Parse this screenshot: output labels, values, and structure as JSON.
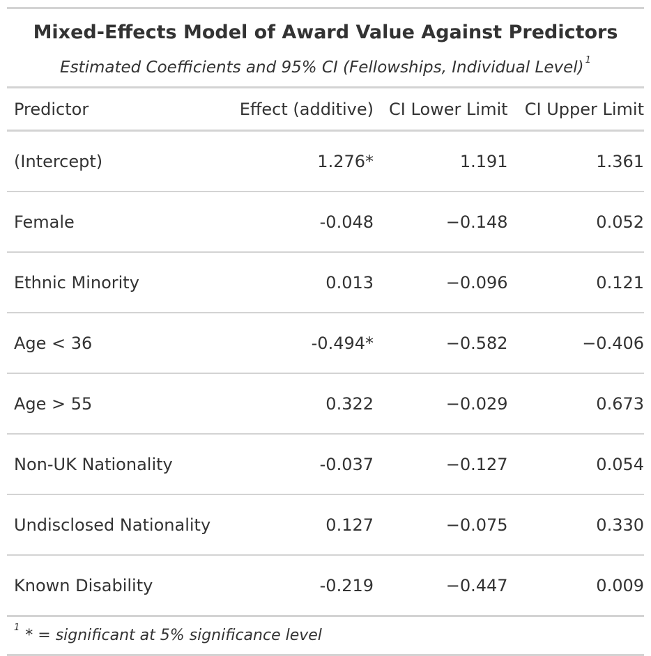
{
  "table": {
    "title": "Mixed-Effects Model of Award Value Against Predictors",
    "subtitle": "Estimated Coefficients and 95% CI (Fellowships, Individual Level)",
    "subtitle_footnote_mark": "1",
    "columns": {
      "predictor": "Predictor",
      "effect": "Effect (additive)",
      "ci_lower": "CI Lower Limit",
      "ci_upper": "CI Upper Limit"
    },
    "rows": [
      {
        "predictor": "(Intercept)",
        "effect": "1.276*",
        "ci_lower": "1.191",
        "ci_upper": "1.361"
      },
      {
        "predictor": "Female",
        "effect": "-0.048",
        "ci_lower": "−0.148",
        "ci_upper": "0.052"
      },
      {
        "predictor": "Ethnic Minority",
        "effect": "0.013",
        "ci_lower": "−0.096",
        "ci_upper": "0.121"
      },
      {
        "predictor": "Age < 36",
        "effect": "-0.494*",
        "ci_lower": "−0.582",
        "ci_upper": "−0.406"
      },
      {
        "predictor": "Age > 55",
        "effect": "0.322",
        "ci_lower": "−0.029",
        "ci_upper": "0.673"
      },
      {
        "predictor": "Non-UK Nationality",
        "effect": "-0.037",
        "ci_lower": "−0.127",
        "ci_upper": "0.054"
      },
      {
        "predictor": "Undisclosed Nationality",
        "effect": "0.127",
        "ci_lower": "−0.075",
        "ci_upper": "0.330"
      },
      {
        "predictor": "Known Disability",
        "effect": "-0.219",
        "ci_lower": "−0.447",
        "ci_upper": "0.009"
      }
    ],
    "footnote_mark": "1",
    "footnote": "* = significant at 5% significance level"
  }
}
